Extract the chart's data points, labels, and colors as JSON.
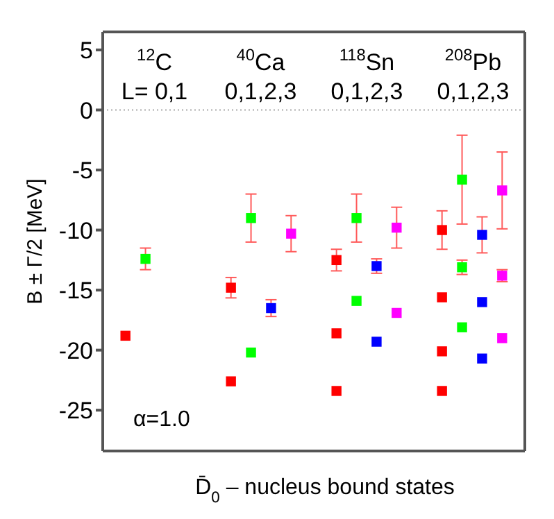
{
  "chart_data": {
    "type": "scatter",
    "xlabel": "D̄$_{0}$ – nucleus bound states",
    "ylabel": "B ± Γ/2  [MeV]",
    "categories": [
      "$^{12}$C",
      "$^{40}$Ca",
      "$^{118}$Sn",
      "$^{208}$Pb"
    ],
    "series": [
      {
        "color": "#ff0000",
        "x": [
          "$^{12}$C",
          "$^{40}$Ca",
          "$^{40}$Ca",
          "$^{118}$Sn",
          "$^{118}$Sn",
          "$^{118}$Sn",
          "$^{208}$Pb",
          "$^{208}$Pb",
          "$^{208}$Pb",
          "$^{208}$Pb"
        ],
        "values": [
          -18.8,
          -14.8,
          -22.6,
          -12.5,
          -18.6,
          -23.4,
          -10.0,
          -15.6,
          -20.1,
          -23.4
        ],
        "errors": [
          null,
          0.85,
          null,
          0.9,
          null,
          null,
          1.6,
          null,
          null,
          null
        ]
      },
      {
        "color": "#00ff00",
        "x": [
          "$^{12}$C",
          "$^{40}$Ca",
          "$^{40}$Ca",
          "$^{118}$Sn",
          "$^{118}$Sn",
          "$^{208}$Pb",
          "$^{208}$Pb",
          "$^{208}$Pb"
        ],
        "values": [
          -12.4,
          -9.0,
          -20.2,
          -9.0,
          -15.9,
          -5.8,
          -13.1,
          -18.1
        ],
        "errors": [
          0.9,
          2,
          null,
          2,
          null,
          3.7,
          0.6,
          null
        ]
      },
      {
        "color": "#0000ff",
        "x": [
          "$^{40}$Ca",
          "$^{118}$Sn",
          "$^{118}$Sn",
          "$^{208}$Pb",
          "$^{208}$Pb",
          "$^{208}$Pb"
        ],
        "values": [
          -16.5,
          -13.0,
          -19.3,
          -10.4,
          -16.0,
          -20.7
        ],
        "errors": [
          0.7,
          0.6,
          null,
          1.5,
          null,
          null
        ]
      },
      {
        "color": "#ff00ff",
        "x": [
          "$^{40}$Ca",
          "$^{118}$Sn",
          "$^{118}$Sn",
          "$^{208}$Pb",
          "$^{208}$Pb",
          "$^{208}$Pb"
        ],
        "values": [
          -10.3,
          -9.8,
          -16.9,
          -6.7,
          -13.8,
          -19.0
        ],
        "errors": [
          1.5,
          1.7,
          null,
          3.2,
          0.5,
          null
        ]
      }
    ],
    "marker": "square",
    "ylim": [
      -28.4,
      6.5
    ],
    "yticks": [
      5,
      0,
      -5,
      -10,
      -15,
      -20,
      -25
    ],
    "ref_lines": [
      {
        "axis": "y",
        "value": 0,
        "line_style": "dotted",
        "color": "#aaaaaa"
      }
    ],
    "annotations": [
      "L= 0,1",
      "0,1,2,3",
      "0,1,2,3",
      "0,1,2,3",
      "α=1.0"
    ],
    "legend": false
  }
}
